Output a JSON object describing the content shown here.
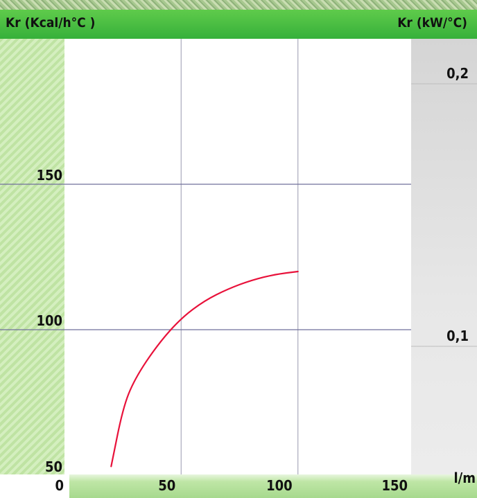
{
  "chart_data": {
    "type": "line",
    "left_axis_title": "Kr (Kcal/h°C )",
    "right_axis_title": "Kr (kW/°C)",
    "xlabel": "l/m",
    "xlim": [
      0,
      150
    ],
    "ylim": [
      50,
      150
    ],
    "right_ylim": [
      0.06,
      0.2
    ],
    "y_ticks": [
      "150",
      "100",
      "50"
    ],
    "y_tick_values": [
      150,
      100,
      50
    ],
    "x_ticks": [
      "0",
      "50",
      "100",
      "150"
    ],
    "x_tick_values": [
      0,
      50,
      100,
      150
    ],
    "right_ticks": [
      "0,2",
      "0,1"
    ],
    "right_tick_values": [
      0.2,
      0.1
    ],
    "grid": true,
    "series": [
      {
        "color": "#e8113a",
        "x": [
          20,
          25,
          30,
          40,
          50,
          60,
          70,
          80,
          90,
          100
        ],
        "y": [
          53,
          73,
          83,
          95,
          104,
          110,
          114,
          117,
          119,
          120
        ]
      }
    ]
  }
}
